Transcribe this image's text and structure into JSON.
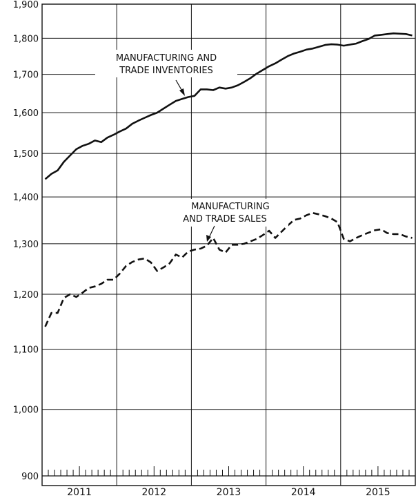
{
  "chart_data": {
    "type": "line",
    "title": "",
    "xlabel": "",
    "ylabel": "",
    "y_scale": "log",
    "ylim": [
      900,
      1900
    ],
    "xlim": [
      "2011-01",
      "2015-12"
    ],
    "yticks": [
      {
        "value": 900,
        "label": "900"
      },
      {
        "value": 1000,
        "label": "1,000"
      },
      {
        "value": 1100,
        "label": "1,100"
      },
      {
        "value": 1200,
        "label": "1,200"
      },
      {
        "value": 1300,
        "label": "1,300"
      },
      {
        "value": 1400,
        "label": "1,400"
      },
      {
        "value": 1500,
        "label": "1,500"
      },
      {
        "value": 1600,
        "label": "1,600"
      },
      {
        "value": 1700,
        "label": "1,700"
      },
      {
        "value": 1800,
        "label": "1,800"
      },
      {
        "value": 1900,
        "label": "1,900"
      }
    ],
    "years": [
      "2011",
      "2012",
      "2013",
      "2014",
      "2015"
    ],
    "grid": {
      "horizontal": true,
      "vertical_at_year_boundaries": true
    },
    "series": [
      {
        "name": "MANUFACTURING AND TRADE INVENTORIES",
        "style": "solid",
        "x": [
          "2011-01",
          "2011-02",
          "2011-03",
          "2011-04",
          "2011-05",
          "2011-06",
          "2011-07",
          "2011-08",
          "2011-09",
          "2011-10",
          "2011-11",
          "2011-12",
          "2012-01",
          "2012-02",
          "2012-03",
          "2012-04",
          "2012-05",
          "2012-06",
          "2012-07",
          "2012-08",
          "2012-09",
          "2012-10",
          "2012-11",
          "2012-12",
          "2013-01",
          "2013-02",
          "2013-03",
          "2013-04",
          "2013-05",
          "2013-06",
          "2013-07",
          "2013-08",
          "2013-09",
          "2013-10",
          "2013-11",
          "2013-12",
          "2014-01",
          "2014-02",
          "2014-03",
          "2014-04",
          "2014-05",
          "2014-06",
          "2014-07",
          "2014-08",
          "2014-09",
          "2014-10",
          "2014-11",
          "2014-12",
          "2015-01",
          "2015-02",
          "2015-03",
          "2015-04",
          "2015-05",
          "2015-06",
          "2015-07",
          "2015-08",
          "2015-09",
          "2015-10",
          "2015-11",
          "2015-12"
        ],
        "values": [
          1440,
          1452,
          1460,
          1480,
          1495,
          1510,
          1518,
          1523,
          1531,
          1527,
          1538,
          1545,
          1553,
          1560,
          1572,
          1580,
          1587,
          1594,
          1600,
          1610,
          1620,
          1630,
          1635,
          1640,
          1643,
          1660,
          1660,
          1658,
          1665,
          1662,
          1665,
          1671,
          1680,
          1690,
          1702,
          1712,
          1722,
          1730,
          1740,
          1750,
          1757,
          1762,
          1768,
          1771,
          1776,
          1781,
          1783,
          1782,
          1779,
          1782,
          1785,
          1792,
          1798,
          1808,
          1810,
          1812,
          1814,
          1813,
          1812,
          1808
        ]
      },
      {
        "name": "MANUFACTURING AND TRADE SALES",
        "style": "dashed",
        "x": [
          "2011-01",
          "2011-02",
          "2011-03",
          "2011-04",
          "2011-05",
          "2011-06",
          "2011-07",
          "2011-08",
          "2011-09",
          "2011-10",
          "2011-11",
          "2011-12",
          "2012-01",
          "2012-02",
          "2012-03",
          "2012-04",
          "2012-05",
          "2012-06",
          "2012-07",
          "2012-08",
          "2012-09",
          "2012-10",
          "2012-11",
          "2012-12",
          "2013-01",
          "2013-02",
          "2013-03",
          "2013-04",
          "2013-05",
          "2013-06",
          "2013-07",
          "2013-08",
          "2013-09",
          "2013-10",
          "2013-11",
          "2013-12",
          "2014-01",
          "2014-02",
          "2014-03",
          "2014-04",
          "2014-05",
          "2014-06",
          "2014-07",
          "2014-08",
          "2014-09",
          "2014-10",
          "2014-11",
          "2014-12",
          "2015-01",
          "2015-02",
          "2015-03",
          "2015-04",
          "2015-05",
          "2015-06",
          "2015-07",
          "2015-08",
          "2015-09",
          "2015-10",
          "2015-11",
          "2015-12"
        ],
        "values": [
          1140,
          1165,
          1165,
          1193,
          1200,
          1195,
          1203,
          1212,
          1215,
          1220,
          1228,
          1228,
          1240,
          1255,
          1263,
          1268,
          1270,
          1262,
          1245,
          1252,
          1260,
          1278,
          1272,
          1284,
          1288,
          1290,
          1296,
          1312,
          1288,
          1282,
          1298,
          1298,
          1300,
          1305,
          1310,
          1318,
          1327,
          1312,
          1325,
          1338,
          1350,
          1353,
          1360,
          1365,
          1362,
          1358,
          1353,
          1345,
          1310,
          1305,
          1312,
          1318,
          1323,
          1328,
          1330,
          1322,
          1320,
          1320,
          1315,
          1312
        ]
      }
    ],
    "annotations": [
      {
        "lines": [
          "MANUFACTURING AND",
          "TRADE INVENTORIES"
        ],
        "series_index": 0
      },
      {
        "lines": [
          "MANUFACTURING",
          "AND TRADE SALES"
        ],
        "series_index": 1
      }
    ]
  }
}
